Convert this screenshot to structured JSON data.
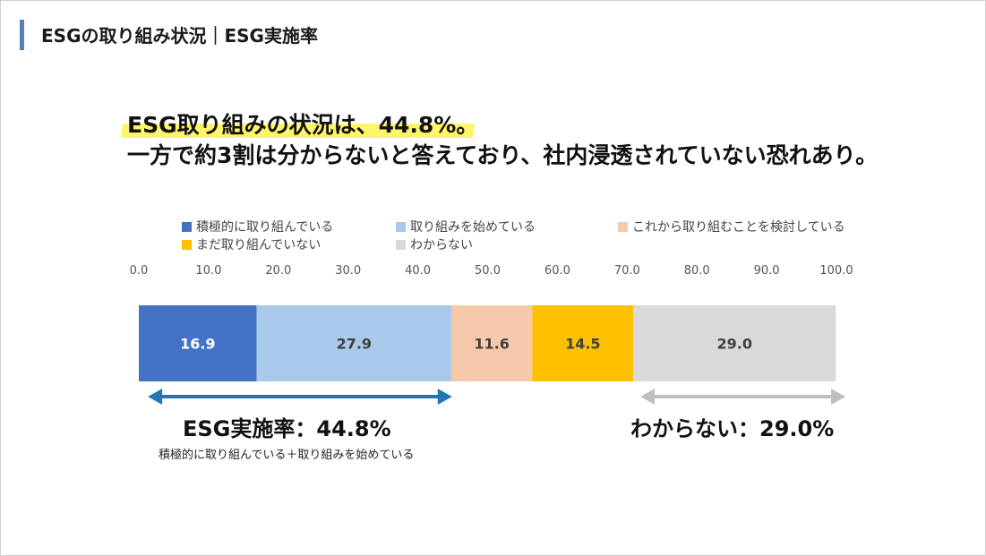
{
  "header": {
    "title": "ESGの取り組み状況｜ESG実施率"
  },
  "headline": {
    "line1": "ESG取り組みの状況は、44.8%。",
    "line2": "一方で約3割は分からないと答えており、社内浸透されていない恐れあり。"
  },
  "colors": {
    "accent_bar": "#5b7fb5",
    "highlight": "#fff56a",
    "arrow_blue": "#1f77b4",
    "arrow_gray": "#bfbfbf"
  },
  "chart_data": {
    "type": "bar",
    "orientation": "horizontal-stacked",
    "xlim": [
      0,
      100
    ],
    "ticks": [
      "0.0",
      "10.0",
      "20.0",
      "30.0",
      "40.0",
      "50.0",
      "60.0",
      "70.0",
      "80.0",
      "90.0",
      "100.0"
    ],
    "grid": false,
    "legend_position": "top",
    "series": [
      {
        "name": "積極的に取り組んでいる",
        "value": 16.9,
        "label": "16.9",
        "color": "#4472c4",
        "label_color": "#ffffff"
      },
      {
        "name": "取り組みを始めている",
        "value": 27.9,
        "label": "27.9",
        "color": "#a9c9eb",
        "label_color": "#404040"
      },
      {
        "name": "これから取り組むことを検討している",
        "value": 11.6,
        "label": "11.6",
        "color": "#f6c9aa",
        "label_color": "#404040"
      },
      {
        "name": "まだ取り組んでいない",
        "value": 14.5,
        "label": "14.5",
        "color": "#ffc000",
        "label_color": "#404040"
      },
      {
        "name": "わからない",
        "value": 29.0,
        "label": "29.0",
        "color": "#d9d9d9",
        "label_color": "#404040"
      }
    ],
    "annotations": [
      {
        "range": [
          0,
          44.8
        ],
        "title": "ESG実施率：44.8%",
        "subtitle": "積極的に取り組んでいる＋取り組みを始めている"
      },
      {
        "range": [
          71.0,
          100
        ],
        "title": "わからない：29.0%"
      }
    ]
  }
}
